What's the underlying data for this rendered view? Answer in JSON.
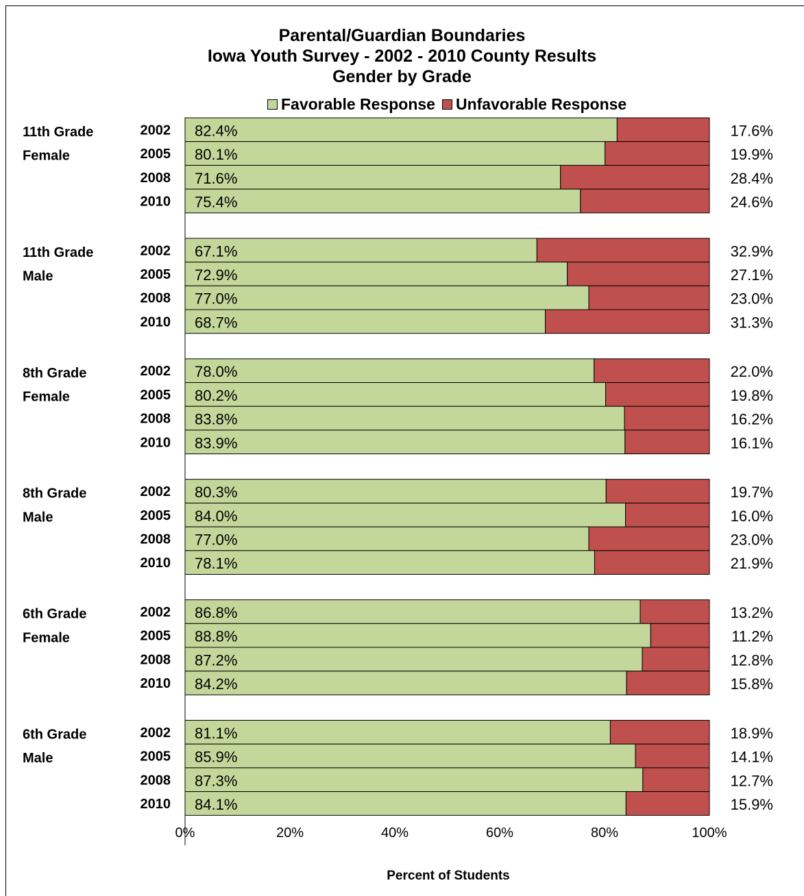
{
  "chart_data": {
    "type": "bar",
    "stacked": true,
    "orientation": "horizontal",
    "title": [
      "Parental/Guardian Boundaries",
      "Iowa Youth Survey - 2002 - 2010 County Results",
      "Gender by Grade"
    ],
    "xlabel": "Percent of Students",
    "xlim": [
      0,
      100
    ],
    "x_ticks": [
      "0%",
      "20%",
      "40%",
      "60%",
      "80%",
      "100%"
    ],
    "legend_position": "top",
    "series": [
      {
        "name": "Favorable Response",
        "color": "#c4d79b"
      },
      {
        "name": "Unfavorable Response",
        "color": "#c0504d"
      }
    ],
    "groups": [
      {
        "label": [
          "11th Grade",
          "Female"
        ],
        "rows": [
          {
            "year": "2002",
            "favorable": 82.4,
            "unfavorable": 17.6,
            "fav_label": "82.4%",
            "unfav_label": "17.6%"
          },
          {
            "year": "2005",
            "favorable": 80.1,
            "unfavorable": 19.9,
            "fav_label": "80.1%",
            "unfav_label": "19.9%"
          },
          {
            "year": "2008",
            "favorable": 71.6,
            "unfavorable": 28.4,
            "fav_label": "71.6%",
            "unfav_label": "28.4%"
          },
          {
            "year": "2010",
            "favorable": 75.4,
            "unfavorable": 24.6,
            "fav_label": "75.4%",
            "unfav_label": "24.6%"
          }
        ]
      },
      {
        "label": [
          "11th Grade",
          "Male"
        ],
        "rows": [
          {
            "year": "2002",
            "favorable": 67.1,
            "unfavorable": 32.9,
            "fav_label": "67.1%",
            "unfav_label": "32.9%"
          },
          {
            "year": "2005",
            "favorable": 72.9,
            "unfavorable": 27.1,
            "fav_label": "72.9%",
            "unfav_label": "27.1%"
          },
          {
            "year": "2008",
            "favorable": 77.0,
            "unfavorable": 23.0,
            "fav_label": "77.0%",
            "unfav_label": "23.0%"
          },
          {
            "year": "2010",
            "favorable": 68.7,
            "unfavorable": 31.3,
            "fav_label": "68.7%",
            "unfav_label": "31.3%"
          }
        ]
      },
      {
        "label": [
          "8th Grade",
          "Female"
        ],
        "rows": [
          {
            "year": "2002",
            "favorable": 78.0,
            "unfavorable": 22.0,
            "fav_label": "78.0%",
            "unfav_label": "22.0%"
          },
          {
            "year": "2005",
            "favorable": 80.2,
            "unfavorable": 19.8,
            "fav_label": "80.2%",
            "unfav_label": "19.8%"
          },
          {
            "year": "2008",
            "favorable": 83.8,
            "unfavorable": 16.2,
            "fav_label": "83.8%",
            "unfav_label": "16.2%"
          },
          {
            "year": "2010",
            "favorable": 83.9,
            "unfavorable": 16.1,
            "fav_label": "83.9%",
            "unfav_label": "16.1%"
          }
        ]
      },
      {
        "label": [
          "8th Grade",
          "Male"
        ],
        "rows": [
          {
            "year": "2002",
            "favorable": 80.3,
            "unfavorable": 19.7,
            "fav_label": "80.3%",
            "unfav_label": "19.7%"
          },
          {
            "year": "2005",
            "favorable": 84.0,
            "unfavorable": 16.0,
            "fav_label": "84.0%",
            "unfav_label": "16.0%"
          },
          {
            "year": "2008",
            "favorable": 77.0,
            "unfavorable": 23.0,
            "fav_label": "77.0%",
            "unfav_label": "23.0%"
          },
          {
            "year": "2010",
            "favorable": 78.1,
            "unfavorable": 21.9,
            "fav_label": "78.1%",
            "unfav_label": "21.9%"
          }
        ]
      },
      {
        "label": [
          "6th Grade",
          "Female"
        ],
        "rows": [
          {
            "year": "2002",
            "favorable": 86.8,
            "unfavorable": 13.2,
            "fav_label": "86.8%",
            "unfav_label": "13.2%"
          },
          {
            "year": "2005",
            "favorable": 88.8,
            "unfavorable": 11.2,
            "fav_label": "88.8%",
            "unfav_label": "11.2%"
          },
          {
            "year": "2008",
            "favorable": 87.2,
            "unfavorable": 12.8,
            "fav_label": "87.2%",
            "unfav_label": "12.8%"
          },
          {
            "year": "2010",
            "favorable": 84.2,
            "unfavorable": 15.8,
            "fav_label": "84.2%",
            "unfav_label": "15.8%"
          }
        ]
      },
      {
        "label": [
          "6th Grade",
          "Male"
        ],
        "rows": [
          {
            "year": "2002",
            "favorable": 81.1,
            "unfavorable": 18.9,
            "fav_label": "81.1%",
            "unfav_label": "18.9%"
          },
          {
            "year": "2005",
            "favorable": 85.9,
            "unfavorable": 14.1,
            "fav_label": "85.9%",
            "unfav_label": "14.1%"
          },
          {
            "year": "2008",
            "favorable": 87.3,
            "unfavorable": 12.7,
            "fav_label": "87.3%",
            "unfav_label": "12.7%"
          },
          {
            "year": "2010",
            "favorable": 84.1,
            "unfavorable": 15.9,
            "fav_label": "84.1%",
            "unfav_label": "15.9%"
          }
        ]
      }
    ]
  }
}
